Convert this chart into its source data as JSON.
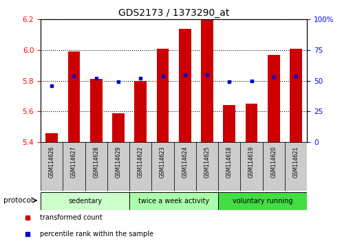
{
  "title": "GDS2173 / 1373290_at",
  "samples": [
    "GSM114626",
    "GSM114627",
    "GSM114628",
    "GSM114629",
    "GSM114622",
    "GSM114623",
    "GSM114624",
    "GSM114625",
    "GSM114618",
    "GSM114619",
    "GSM114620",
    "GSM114621"
  ],
  "bar_values": [
    5.46,
    5.99,
    5.81,
    5.59,
    5.8,
    6.01,
    6.14,
    6.2,
    5.64,
    5.65,
    5.97,
    6.01
  ],
  "dot_values": [
    46,
    54,
    52,
    49,
    52,
    54,
    55,
    55,
    49,
    50,
    53,
    54
  ],
  "bar_color": "#cc0000",
  "dot_color": "#0000cc",
  "ylim_left": [
    5.4,
    6.2
  ],
  "ylim_right": [
    0,
    100
  ],
  "yticks_left": [
    5.4,
    5.6,
    5.8,
    6.0,
    6.2
  ],
  "yticks_right": [
    0,
    25,
    50,
    75,
    100
  ],
  "ytick_labels_right": [
    "0",
    "25",
    "50",
    "75",
    "100%"
  ],
  "groups": [
    {
      "label": "sedentary",
      "start": 0,
      "end": 4,
      "color": "#ccffcc"
    },
    {
      "label": "twice a week activity",
      "start": 4,
      "end": 8,
      "color": "#aaffaa"
    },
    {
      "label": "voluntary running",
      "start": 8,
      "end": 12,
      "color": "#44dd44"
    }
  ],
  "protocol_label": "protocol",
  "legend_items": [
    {
      "label": "transformed count",
      "color": "#cc0000"
    },
    {
      "label": "percentile rank within the sample",
      "color": "#0000cc"
    }
  ],
  "bar_bottom": 5.4,
  "sample_box_color": "#cccccc",
  "figsize": [
    5.13,
    3.54
  ],
  "dpi": 100
}
